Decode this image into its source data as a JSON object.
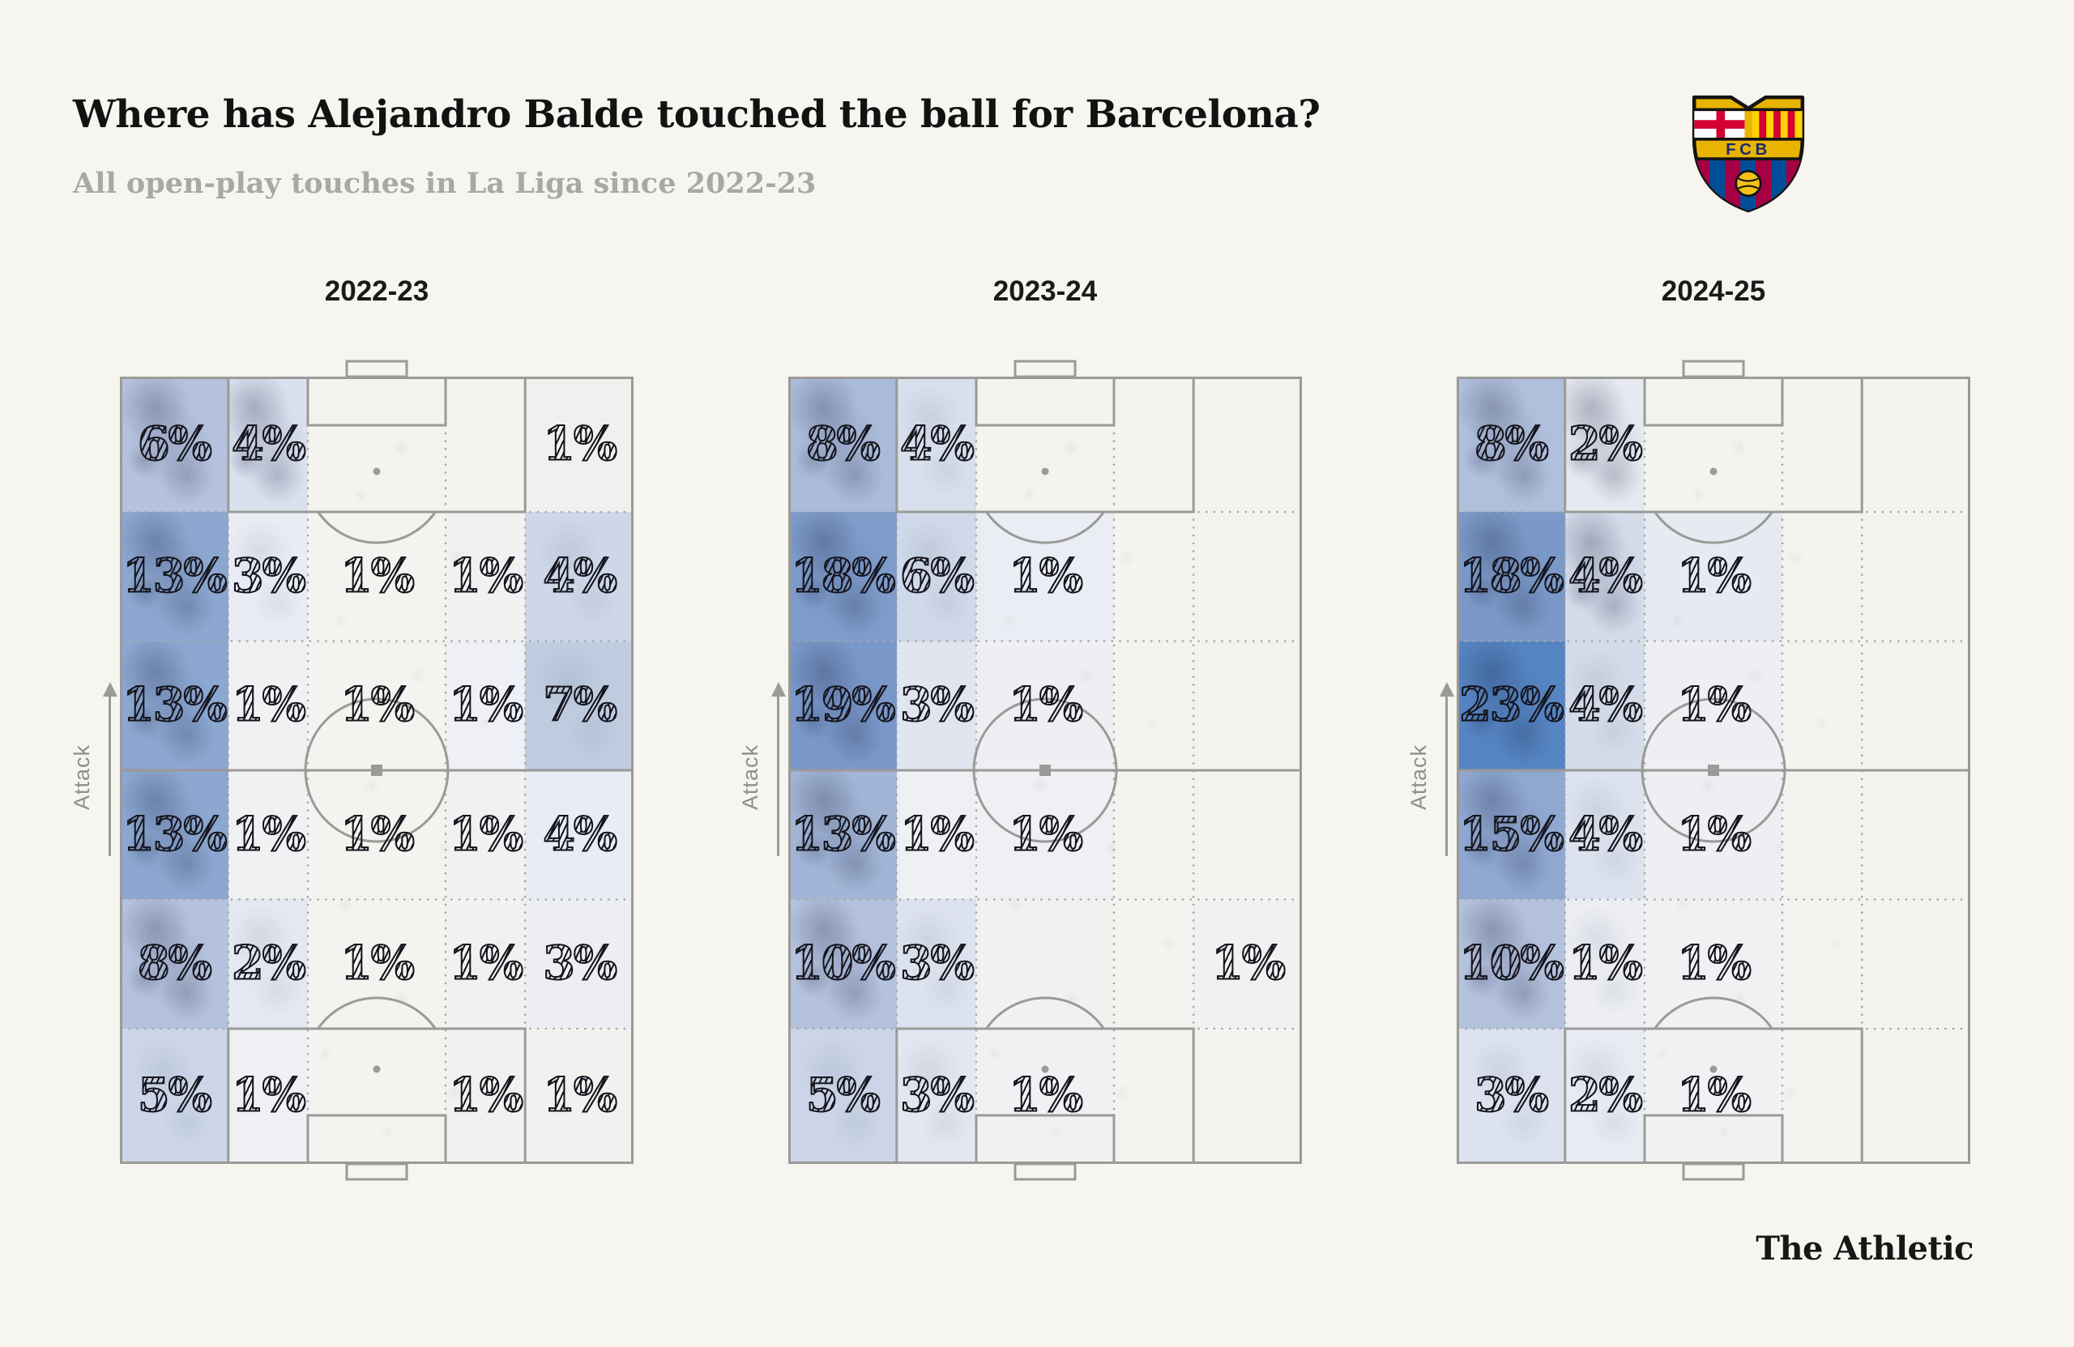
{
  "header": {
    "title": "Where has Alejandro Balde touched the ball for Barcelona?",
    "subtitle": "All open-play touches in La Liga since 2022-23"
  },
  "branding": {
    "publisher": "The Athletic",
    "crest_text": "FCB",
    "crest_colors": {
      "gold": "#e9b400",
      "outline": "#141414",
      "cross_red": "#d50032",
      "catalan_yellow": "#ffd400",
      "catalan_red": "#d50032",
      "blaugrana_blue": "#004d98",
      "blaugrana_red": "#a50044",
      "letters_navy": "#1a2a6c"
    }
  },
  "chart_data": {
    "type": "heatmap",
    "title": "Where has Alejandro Balde touched the ball for Barcelona?",
    "subtitle": "All open-play touches in La Liga since 2022-23",
    "unit": "percent of open-play touches per pitch zone",
    "attack_label": "Attack",
    "grid": {
      "columns": 5,
      "rows": 6,
      "orientation": "vertical pitch, attacking upward, left-back zones on left"
    },
    "palette": {
      "low": "#f3f3f0",
      "high": "#5584c2",
      "line_gray": "#9a9a97"
    },
    "seasons": [
      {
        "label": "2022-23",
        "values": [
          [
            6,
            4,
            null,
            null,
            1
          ],
          [
            13,
            3,
            1,
            1,
            4
          ],
          [
            13,
            1,
            1,
            1,
            7
          ],
          [
            13,
            1,
            1,
            1,
            4
          ],
          [
            8,
            2,
            1,
            1,
            3
          ],
          [
            5,
            1,
            null,
            1,
            1
          ]
        ],
        "colors": [
          [
            "#b5c2dd",
            "#d9e0ee",
            "#f3f3f0",
            "#f3f3f0",
            "#f0f0ee"
          ],
          [
            "#8ca7d0",
            "#e9ecf2",
            "#f3f3f0",
            "#f1f1f1",
            "#cdd7e8"
          ],
          [
            "#8ca7d0",
            "#f0f1f3",
            "#f3f3f0",
            "#eef0f5",
            "#bfcce0"
          ],
          [
            "#8ca7d0",
            "#f0f1f3",
            "#f3f3f0",
            "#f1f1f1",
            "#e8ecf4"
          ],
          [
            "#b5c2dd",
            "#e4e8f1",
            "#f3f3f0",
            "#f1f1f0",
            "#eceef4"
          ],
          [
            "#ccd6e8",
            "#eef0f4",
            "#f3f3f0",
            "#f1f1f0",
            "#f1f1f0"
          ]
        ],
        "smudge": [
          [
            2,
            2,
            0,
            0,
            0
          ],
          [
            2,
            1,
            0,
            0,
            1
          ],
          [
            2,
            0,
            0,
            0,
            1
          ],
          [
            2,
            0,
            0,
            0,
            0
          ],
          [
            2,
            1,
            0,
            0,
            0
          ],
          [
            1,
            0,
            0,
            0,
            0
          ]
        ]
      },
      {
        "label": "2023-24",
        "values": [
          [
            8,
            4,
            null,
            null,
            null
          ],
          [
            18,
            6,
            1,
            null,
            null
          ],
          [
            19,
            3,
            1,
            null,
            null
          ],
          [
            13,
            1,
            1,
            null,
            null
          ],
          [
            10,
            3,
            null,
            null,
            1
          ],
          [
            5,
            3,
            1,
            null,
            null
          ]
        ],
        "colors": [
          [
            "#aabbd9",
            "#d8dfed",
            "#f3f3f0",
            "#f3f3f0",
            "#f3f3f0"
          ],
          [
            "#7e9bca",
            "#cfd9e9",
            "#eaedf3",
            "#f3f3f0",
            "#f3f3f0"
          ],
          [
            "#7997c8",
            "#e0e5ef",
            "#edeff3",
            "#f3f3f0",
            "#f3f3f0"
          ],
          [
            "#a2b5d6",
            "#eef0f4",
            "#eef0f4",
            "#f3f3f0",
            "#f3f3f0"
          ],
          [
            "#b4c2dd",
            "#dde3ee",
            "#f1f1f0",
            "#f3f3f0",
            "#f0f1f1"
          ],
          [
            "#cbd5e7",
            "#e3e7f0",
            "#f0f1f3",
            "#f3f3f0",
            "#f3f3f0"
          ]
        ],
        "smudge": [
          [
            2,
            1,
            0,
            0,
            0
          ],
          [
            2,
            1,
            0,
            0,
            0
          ],
          [
            2,
            0,
            0,
            0,
            0
          ],
          [
            2,
            0,
            0,
            0,
            0
          ],
          [
            2,
            1,
            0,
            0,
            0
          ],
          [
            1,
            1,
            0,
            0,
            0
          ]
        ]
      },
      {
        "label": "2024-25",
        "values": [
          [
            8,
            2,
            null,
            null,
            null
          ],
          [
            18,
            4,
            1,
            null,
            null
          ],
          [
            23,
            4,
            1,
            null,
            null
          ],
          [
            15,
            4,
            1,
            null,
            null
          ],
          [
            10,
            1,
            1,
            null,
            null
          ],
          [
            3,
            2,
            1,
            null,
            null
          ]
        ],
        "colors": [
          [
            "#b0bfdb",
            "#e6e9f1",
            "#f3f3f0",
            "#f3f3f0",
            "#f3f3f0"
          ],
          [
            "#7b99c8",
            "#d4dcea",
            "#e7eaf1",
            "#f3f3f0",
            "#f3f3f0"
          ],
          [
            "#5584c2",
            "#d4dcea",
            "#edeff3",
            "#f3f3f0",
            "#f3f3f0"
          ],
          [
            "#90a8d0",
            "#dce2ee",
            "#edeff3",
            "#f3f3f0",
            "#f3f3f0"
          ],
          [
            "#b4c2dd",
            "#eceef3",
            "#f0f1f2",
            "#f3f3f0",
            "#f3f3f0"
          ],
          [
            "#dce2ee",
            "#e8ebf2",
            "#f0f1f3",
            "#f3f3f0",
            "#f3f3f0"
          ]
        ],
        "smudge": [
          [
            2,
            2,
            0,
            0,
            0
          ],
          [
            2,
            2,
            0,
            0,
            0
          ],
          [
            2,
            1,
            0,
            0,
            0
          ],
          [
            2,
            1,
            0,
            0,
            0
          ],
          [
            2,
            1,
            0,
            0,
            0
          ],
          [
            1,
            1,
            0,
            0,
            0
          ]
        ]
      }
    ]
  }
}
